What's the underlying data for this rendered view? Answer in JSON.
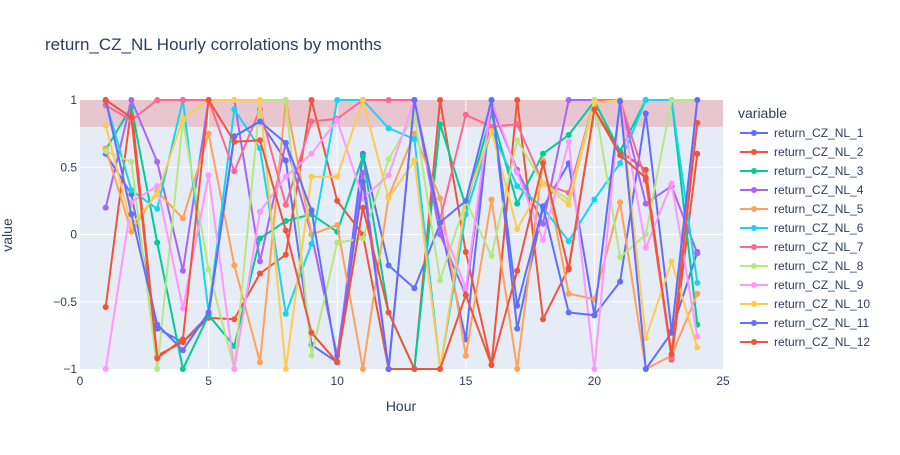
{
  "chart_data": {
    "type": "line",
    "title": "return_CZ_NL Hourly corrolations by months",
    "xlabel": "Hour",
    "ylabel": "value",
    "xlim": [
      0,
      25
    ],
    "ylim": [
      -1,
      1
    ],
    "x_ticks": [
      0,
      5,
      10,
      15,
      20,
      25
    ],
    "y_ticks": [
      -1,
      -0.5,
      0,
      0.5,
      1
    ],
    "y_tick_labels": [
      "−1",
      "−0.5",
      "0",
      "0.5",
      "1"
    ],
    "grid": true,
    "legend_title": "variable",
    "legend_position": "right",
    "shaded_band": {
      "y_from": 0.8,
      "y_to": 1.0,
      "color": "#e8bfc8"
    },
    "x": [
      1,
      2,
      3,
      4,
      5,
      6,
      7,
      8,
      9,
      10,
      11,
      12,
      13,
      14,
      15,
      16,
      17,
      18,
      19,
      20,
      21,
      22,
      23,
      24
    ],
    "series": [
      {
        "name": "return_CZ_NL_1",
        "color": "#636efa",
        "values": [
          0.6,
          0.3,
          -0.7,
          -0.8,
          -0.6,
          0.73,
          0.84,
          0.55,
          -0.82,
          -0.95,
          0.6,
          -0.23,
          -0.4,
          0.08,
          -0.78,
          1.0,
          -0.7,
          0.2,
          0.53,
          -0.6,
          -0.35,
          0.9,
          -0.72,
          -0.13
        ]
      },
      {
        "name": "return_CZ_NL_2",
        "color": "#EF553B",
        "values": [
          -0.54,
          0.95,
          -0.9,
          -0.8,
          -0.62,
          -0.63,
          -0.29,
          -0.15,
          1.0,
          0.25,
          0.0,
          -1.0,
          -1.0,
          1.0,
          -0.13,
          -0.97,
          1.0,
          -0.63,
          -0.25,
          0.93,
          0.62,
          0.48,
          -0.93,
          0.6
        ]
      },
      {
        "name": "return_CZ_NL_3",
        "color": "#00cc96",
        "values": [
          0.63,
          0.95,
          -0.06,
          -1.0,
          -0.6,
          -0.83,
          -0.03,
          0.1,
          0.15,
          0.02,
          0.58,
          -0.58,
          -1.0,
          0.82,
          0.21,
          0.9,
          0.23,
          0.6,
          0.74,
          0.99,
          0.62,
          1.0,
          1.0,
          -0.67
        ]
      },
      {
        "name": "return_CZ_NL_4",
        "color": "#ab63fa",
        "values": [
          0.2,
          1.0,
          0.54,
          -0.27,
          1.0,
          1.0,
          -0.2,
          0.68,
          0.0,
          -0.9,
          0.46,
          -1.0,
          1.0,
          0.0,
          -0.45,
          0.95,
          0.48,
          0.08,
          1.0,
          1.0,
          1.0,
          0.23,
          0.36,
          -0.14
        ]
      },
      {
        "name": "return_CZ_NL_5",
        "color": "#FFA15A",
        "values": [
          0.64,
          0.02,
          0.32,
          0.12,
          0.75,
          -0.23,
          -0.95,
          1.0,
          0.0,
          0.07,
          -1.0,
          0.28,
          0.75,
          0.27,
          -0.9,
          0.26,
          -1.0,
          0.55,
          -0.44,
          -0.48,
          0.24,
          -1.0,
          -0.9,
          -0.44
        ]
      },
      {
        "name": "return_CZ_NL_6",
        "color": "#19d3f3",
        "values": [
          0.99,
          0.33,
          0.19,
          1.0,
          -0.58,
          0.93,
          0.64,
          -0.59,
          -0.07,
          1.0,
          1.0,
          0.79,
          0.71,
          -1.0,
          0.15,
          0.77,
          0.36,
          0.2,
          -0.05,
          0.26,
          0.53,
          1.0,
          1.0,
          -0.36
        ]
      },
      {
        "name": "return_CZ_NL_7",
        "color": "#FF6692",
        "values": [
          0.96,
          0.85,
          1.0,
          1.0,
          1.0,
          0.47,
          0.93,
          0.22,
          0.84,
          0.86,
          1.0,
          1.0,
          1.0,
          0.11,
          0.89,
          0.8,
          0.82,
          0.38,
          0.31,
          1.0,
          1.0,
          0.4,
          -0.92,
          1.0
        ]
      },
      {
        "name": "return_CZ_NL_8",
        "color": "#B6E880",
        "values": [
          0.62,
          0.54,
          -1.0,
          0.85,
          -0.26,
          -1.0,
          1.0,
          1.0,
          -0.9,
          -0.06,
          -0.03,
          0.56,
          0.89,
          -0.34,
          0.25,
          -0.16,
          0.7,
          0.38,
          0.26,
          1.0,
          -0.17,
          0.0,
          1.0,
          1.0
        ]
      },
      {
        "name": "return_CZ_NL_9",
        "color": "#FF97FF",
        "values": [
          -1.0,
          0.24,
          0.36,
          -0.55,
          0.44,
          -1.0,
          0.17,
          0.43,
          0.6,
          0.85,
          0.27,
          0.44,
          1.0,
          0.1,
          -0.4,
          1.0,
          0.46,
          -0.04,
          0.69,
          -1.0,
          1.0,
          -0.1,
          0.38,
          -0.76
        ]
      },
      {
        "name": "return_CZ_NL_10",
        "color": "#FECB52",
        "values": [
          0.81,
          0.07,
          0.3,
          0.86,
          1.0,
          1.0,
          1.0,
          -1.0,
          0.43,
          0.43,
          1.0,
          0.27,
          0.55,
          -1.0,
          0.25,
          0.77,
          0.04,
          0.38,
          0.22,
          0.98,
          1.0,
          -0.77,
          -0.2,
          -0.84
        ]
      },
      {
        "name": "return_CZ_NL_11",
        "color": "#636efa",
        "values": [
          1.0,
          0.15,
          -0.67,
          -0.86,
          -0.58,
          0.73,
          0.84,
          0.68,
          0.18,
          -0.95,
          0.39,
          -1.0,
          1.0,
          0.09,
          0.25,
          1.0,
          -0.53,
          0.21,
          -0.58,
          -0.6,
          0.99,
          -1.0,
          -0.73,
          1.0
        ]
      },
      {
        "name": "return_CZ_NL_12",
        "color": "#EF553B",
        "values": [
          1.0,
          0.87,
          -0.92,
          -0.78,
          1.0,
          0.69,
          0.7,
          0.03,
          -0.73,
          -0.95,
          0.2,
          -0.58,
          -1.0,
          -1.0,
          -0.45,
          -0.97,
          -0.27,
          0.53,
          -0.26,
          0.93,
          0.59,
          0.42,
          -0.89,
          0.83
        ]
      }
    ]
  }
}
